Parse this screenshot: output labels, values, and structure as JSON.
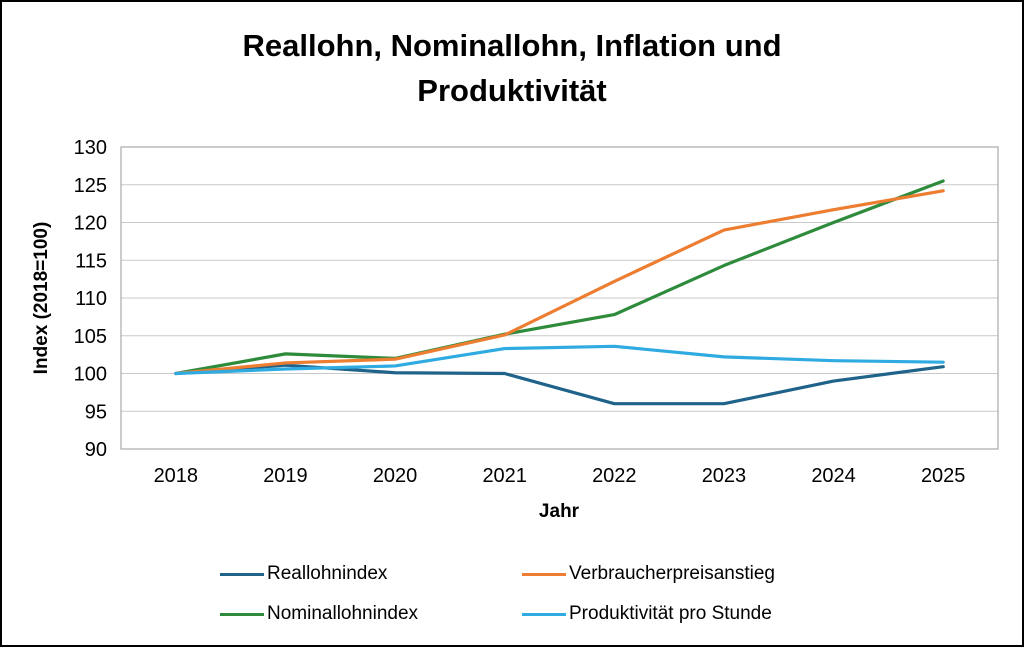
{
  "title": {
    "line1": "Reallohn, Nominallohn, Inflation und",
    "line2": "Produktivität"
  },
  "chart_data": {
    "type": "line",
    "title": "Reallohn, Nominallohn, Inflation und Produktivität",
    "xlabel": "Jahr",
    "ylabel": "Index (2018=100)",
    "categories": [
      "2018",
      "2019",
      "2020",
      "2021",
      "2022",
      "2023",
      "2024",
      "2025"
    ],
    "ylim": [
      90,
      130
    ],
    "yticks": [
      90,
      95,
      100,
      105,
      110,
      115,
      120,
      125,
      130
    ],
    "grid": "horizontal",
    "legend_position": "bottom",
    "series": [
      {
        "name": "Reallohnindex",
        "color": "#1F638B",
        "values": [
          100,
          101.1,
          100.1,
          100,
          96,
          96,
          99,
          100.9
        ]
      },
      {
        "name": "Nominallohnindex",
        "color": "#2E8B3C",
        "values": [
          100,
          102.6,
          102,
          105.2,
          107.8,
          114.3,
          120,
          125.5
        ]
      },
      {
        "name": "Verbraucherpreisanstieg",
        "color": "#ED7D31",
        "values": [
          100,
          101.4,
          101.9,
          105.1,
          112.2,
          119,
          121.7,
          124.2
        ]
      },
      {
        "name": "Produktivität pro Stunde",
        "color": "#2FABE1",
        "values": [
          100,
          100.6,
          101,
          103.3,
          103.6,
          102.2,
          101.7,
          101.5
        ]
      }
    ],
    "legend_order": [
      0,
      2,
      1,
      3
    ]
  },
  "colors": {
    "gridline": "#C9C9C9",
    "plot_border": "#A9A9A9",
    "text": "#000000",
    "background": "#FFFFFF",
    "frame_border": "#000000"
  }
}
